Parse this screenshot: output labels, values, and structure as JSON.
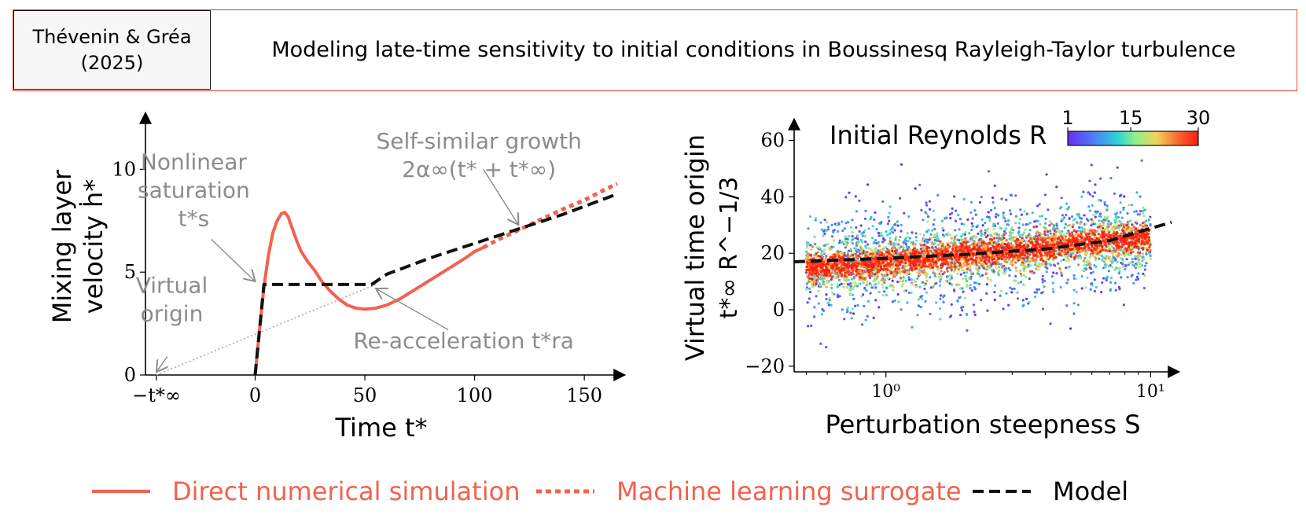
{
  "header": {
    "cite_line1": "Thévenin & Gréa",
    "cite_line2": "(2025)",
    "title": "Modeling late-time sensitivity to initial conditions in Boussinesq Rayleigh-Taylor turbulence"
  },
  "colors": {
    "dns": "#f2624e",
    "model": "#111111",
    "annotation": "#8c8c8c",
    "border": "#e8402b"
  },
  "chart_data": [
    {
      "type": "line",
      "xlabel": "Time t*",
      "ylabel": "Mixing layer velocity ḣ*",
      "xlim": [
        -50,
        165
      ],
      "ylim": [
        0,
        12.5
      ],
      "x_ticks": [
        {
          "value": -45,
          "label": "−t*∞"
        },
        {
          "value": 0,
          "label": "0"
        },
        {
          "value": 50,
          "label": "50"
        },
        {
          "value": 100,
          "label": "100"
        },
        {
          "value": 150,
          "label": "150"
        }
      ],
      "y_ticks": [
        {
          "value": 0,
          "label": "0"
        },
        {
          "value": 5,
          "label": "5"
        },
        {
          "value": 10,
          "label": "10"
        }
      ],
      "series": [
        {
          "name": "Direct numerical simulation",
          "style": "solid",
          "x": [
            0,
            2,
            4,
            6,
            8,
            10,
            12,
            13.5,
            15,
            17,
            19,
            21,
            24,
            27,
            30,
            34,
            38,
            42,
            46,
            50,
            55,
            60,
            66,
            72,
            78,
            84,
            90,
            96,
            100,
            104
          ],
          "y": [
            0,
            2.2,
            4.3,
            5.8,
            6.9,
            7.5,
            7.85,
            7.9,
            7.7,
            7.1,
            6.5,
            6.0,
            5.5,
            5.1,
            4.6,
            4.1,
            3.7,
            3.4,
            3.25,
            3.2,
            3.25,
            3.4,
            3.7,
            4.1,
            4.5,
            4.9,
            5.3,
            5.7,
            6.0,
            6.2
          ]
        },
        {
          "name": "Machine learning surrogate",
          "style": "dotted",
          "x": [
            104,
            110,
            120,
            130,
            140,
            150,
            160,
            165
          ],
          "y": [
            6.2,
            6.55,
            7.05,
            7.55,
            8.05,
            8.5,
            9.05,
            9.3
          ]
        },
        {
          "name": "Model",
          "style": "dashed",
          "x": [
            0,
            4,
            4,
            53,
            60,
            80,
            100,
            120,
            140,
            165
          ],
          "y": [
            0,
            4.4,
            4.4,
            4.4,
            4.9,
            5.7,
            6.4,
            7.1,
            7.8,
            8.8
          ]
        },
        {
          "name": "Virtual origin line",
          "style": "dotted-gray",
          "x": [
            -45,
            55
          ],
          "y": [
            0,
            4.4
          ]
        }
      ],
      "annotations": [
        {
          "lines": [
            "Self-similar growth",
            "2α∞(t* + t*∞)"
          ],
          "x": 102,
          "y": 11.0
        },
        {
          "lines": [
            "Nonlinear",
            "saturation",
            "t*s"
          ],
          "x": -28,
          "y": 10.0
        },
        {
          "lines": [
            "Virtual",
            "origin"
          ],
          "x": -38,
          "y": 4.0
        },
        {
          "lines": [
            "Re-acceleration t*ra"
          ],
          "x": 95,
          "y": 1.3
        }
      ]
    },
    {
      "type": "scatter",
      "xlabel": "Perturbation steepness S",
      "ylabel_line1": "Virtual time origin",
      "ylabel_line2": "t*∞ R^−1/3",
      "xscale": "log",
      "xlim": [
        0.45,
        12
      ],
      "ylim": [
        -22,
        66
      ],
      "x_ticks": [
        {
          "value": 1,
          "label": "10⁰"
        },
        {
          "value": 10,
          "label": "10¹"
        }
      ],
      "y_ticks": [
        {
          "value": -20,
          "label": "−20"
        },
        {
          "value": 0,
          "label": "0"
        },
        {
          "value": 20,
          "label": "20"
        },
        {
          "value": 40,
          "label": "40"
        },
        {
          "value": 60,
          "label": "60"
        }
      ],
      "colorbar": {
        "title": "Initial Reynolds R",
        "ticks": [
          1,
          15,
          30
        ],
        "range": [
          1,
          30
        ]
      },
      "trend_low_R": {
        "x": [
          0.5,
          1,
          2,
          4,
          10
        ],
        "y": [
          13,
          15.5,
          17.5,
          19.5,
          23
        ]
      },
      "trend_mid_R": {
        "x": [
          0.5,
          1,
          2,
          4,
          10
        ],
        "y": [
          15,
          17,
          19.5,
          22,
          26
        ]
      },
      "model": {
        "x": [
          0.45,
          1,
          2,
          4,
          7,
          12
        ],
        "y": [
          17,
          18.2,
          19.6,
          21.5,
          24.5,
          31
        ]
      }
    }
  ],
  "legend": [
    {
      "label": "Direct numerical simulation",
      "style": "solid"
    },
    {
      "label": "Machine learning surrogate",
      "style": "dotted"
    },
    {
      "label": "Model",
      "style": "dashed"
    }
  ]
}
